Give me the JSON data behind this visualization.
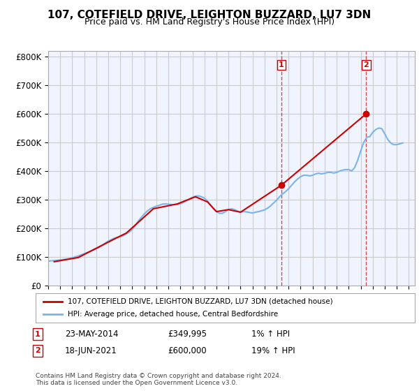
{
  "title": "107, COTEFIELD DRIVE, LEIGHTON BUZZARD, LU7 3DN",
  "subtitle": "Price paid vs. HM Land Registry's House Price Index (HPI)",
  "ylabel_ticks": [
    "£0",
    "£100K",
    "£200K",
    "£300K",
    "£400K",
    "£500K",
    "£600K",
    "£700K",
    "£800K"
  ],
  "ytick_values": [
    0,
    100000,
    200000,
    300000,
    400000,
    500000,
    600000,
    700000,
    800000
  ],
  "ylim": [
    0,
    820000
  ],
  "xlim_start": 1995.0,
  "xlim_end": 2025.5,
  "grid_color": "#cccccc",
  "background_color": "#ffffff",
  "plot_background": "#f0f4ff",
  "hpi_color": "#7ab4e8",
  "price_color": "#cc0000",
  "marker1_x": 2014.39,
  "marker1_y": 349995,
  "marker2_x": 2021.46,
  "marker2_y": 600000,
  "vline1_x": 2014.39,
  "vline2_x": 2021.46,
  "legend_label_price": "107, COTEFIELD DRIVE, LEIGHTON BUZZARD, LU7 3DN (detached house)",
  "legend_label_hpi": "HPI: Average price, detached house, Central Bedfordshire",
  "annotation1_label": "1",
  "annotation2_label": "2",
  "note1_num": "1",
  "note1_date": "23-MAY-2014",
  "note1_price": "£349,995",
  "note1_hpi": "1% ↑ HPI",
  "note2_num": "2",
  "note2_date": "18-JUN-2021",
  "note2_price": "£600,000",
  "note2_hpi": "19% ↑ HPI",
  "footer": "Contains HM Land Registry data © Crown copyright and database right 2024.\nThis data is licensed under the Open Government Licence v3.0.",
  "hpi_data_x": [
    1995.0,
    1995.25,
    1995.5,
    1995.75,
    1996.0,
    1996.25,
    1996.5,
    1996.75,
    1997.0,
    1997.25,
    1997.5,
    1997.75,
    1998.0,
    1998.25,
    1998.5,
    1998.75,
    1999.0,
    1999.25,
    1999.5,
    1999.75,
    2000.0,
    2000.25,
    2000.5,
    2000.75,
    2001.0,
    2001.25,
    2001.5,
    2001.75,
    2002.0,
    2002.25,
    2002.5,
    2002.75,
    2003.0,
    2003.25,
    2003.5,
    2003.75,
    2004.0,
    2004.25,
    2004.5,
    2004.75,
    2005.0,
    2005.25,
    2005.5,
    2005.75,
    2006.0,
    2006.25,
    2006.5,
    2006.75,
    2007.0,
    2007.25,
    2007.5,
    2007.75,
    2008.0,
    2008.25,
    2008.5,
    2008.75,
    2009.0,
    2009.25,
    2009.5,
    2009.75,
    2010.0,
    2010.25,
    2010.5,
    2010.75,
    2011.0,
    2011.25,
    2011.5,
    2011.75,
    2012.0,
    2012.25,
    2012.5,
    2012.75,
    2013.0,
    2013.25,
    2013.5,
    2013.75,
    2014.0,
    2014.25,
    2014.5,
    2014.75,
    2015.0,
    2015.25,
    2015.5,
    2015.75,
    2016.0,
    2016.25,
    2016.5,
    2016.75,
    2017.0,
    2017.25,
    2017.5,
    2017.75,
    2018.0,
    2018.25,
    2018.5,
    2018.75,
    2019.0,
    2019.25,
    2019.5,
    2019.75,
    2020.0,
    2020.25,
    2020.5,
    2020.75,
    2021.0,
    2021.25,
    2021.5,
    2021.75,
    2022.0,
    2022.25,
    2022.5,
    2022.75,
    2023.0,
    2023.25,
    2023.5,
    2023.75,
    2024.0,
    2024.25,
    2024.5
  ],
  "hpi_data_y": [
    85000,
    86000,
    87000,
    88000,
    89000,
    90500,
    92000,
    94000,
    96000,
    100000,
    103000,
    107000,
    111000,
    115000,
    119000,
    123000,
    128000,
    133000,
    140000,
    148000,
    155000,
    160000,
    165000,
    168000,
    170000,
    174000,
    180000,
    187000,
    196000,
    210000,
    225000,
    238000,
    250000,
    260000,
    268000,
    273000,
    277000,
    280000,
    284000,
    285000,
    284000,
    283000,
    282000,
    283000,
    285000,
    290000,
    296000,
    302000,
    308000,
    312000,
    313000,
    310000,
    305000,
    295000,
    282000,
    268000,
    258000,
    252000,
    252000,
    258000,
    265000,
    268000,
    265000,
    260000,
    256000,
    258000,
    257000,
    255000,
    253000,
    256000,
    258000,
    261000,
    264000,
    270000,
    278000,
    288000,
    298000,
    310000,
    320000,
    328000,
    338000,
    350000,
    362000,
    372000,
    380000,
    385000,
    385000,
    383000,
    385000,
    390000,
    392000,
    390000,
    392000,
    395000,
    395000,
    393000,
    395000,
    400000,
    403000,
    405000,
    405000,
    400000,
    412000,
    438000,
    470000,
    500000,
    518000,
    520000,
    535000,
    545000,
    550000,
    548000,
    530000,
    510000,
    498000,
    492000,
    492000,
    495000,
    498000
  ],
  "price_data_x": [
    1995.5,
    1997.5,
    1999.0,
    2000.75,
    2001.5,
    2003.75,
    2005.75,
    2007.25,
    2008.25,
    2009.0,
    2010.0,
    2011.0,
    2014.39,
    2021.46
  ],
  "price_data_y": [
    83000,
    97500,
    130000,
    167500,
    183000,
    268000,
    285000,
    310000,
    292000,
    258000,
    265000,
    256000,
    349995,
    600000
  ]
}
